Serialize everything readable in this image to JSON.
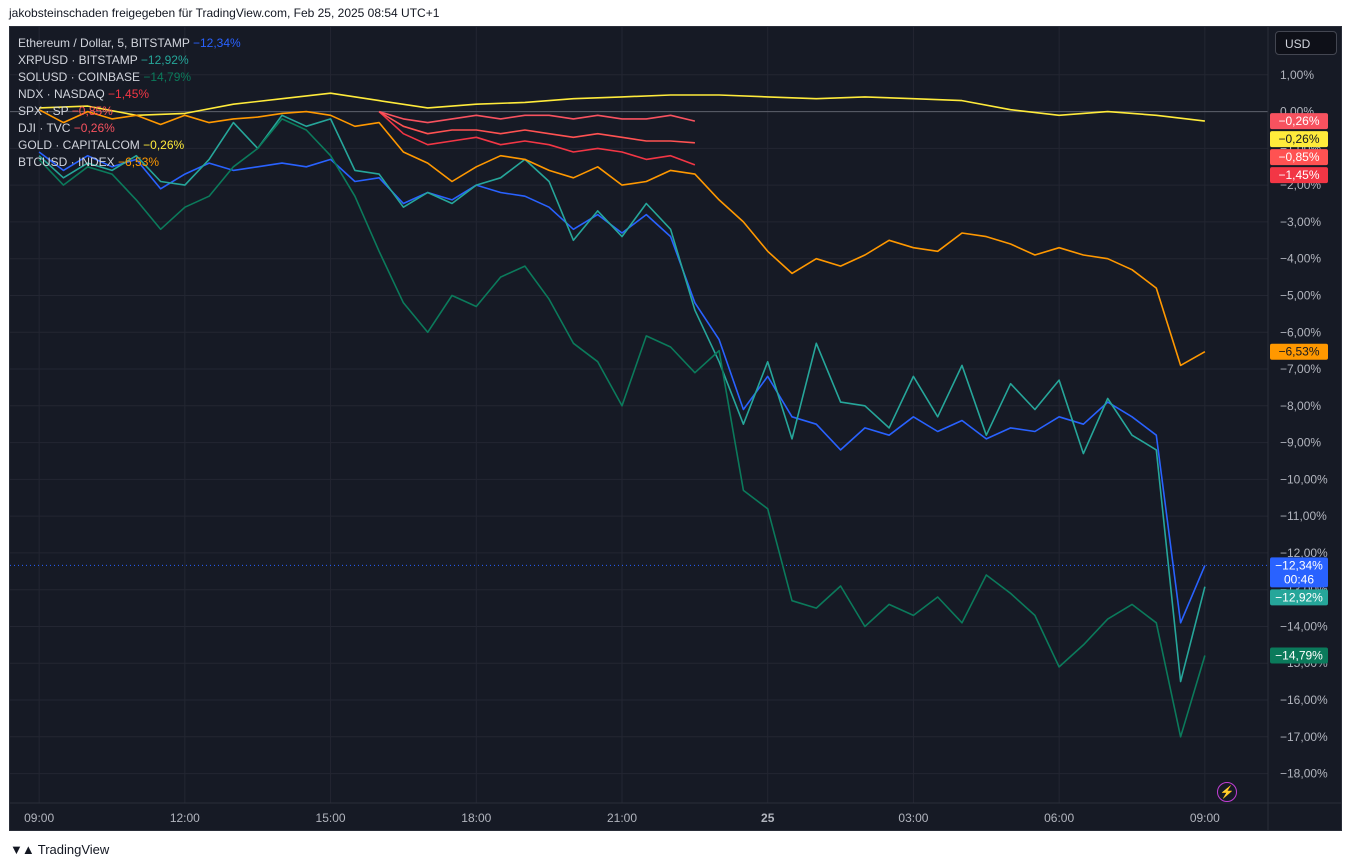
{
  "header": {
    "caption": "jakobsteinschaden freigegeben für TradingView.com, Feb 25, 2025 08:54 UTC+1"
  },
  "toolbar": {
    "currency_label": "USD"
  },
  "footer": {
    "brand": "TradingView",
    "logo_icon": "tradingview-logo-icon"
  },
  "chart_data": {
    "type": "line",
    "title": "",
    "xlabel": "",
    "ylabel": "",
    "x_ticks": [
      "09:00",
      "12:00",
      "15:00",
      "18:00",
      "21:00",
      "25",
      "03:00",
      "06:00",
      "09:00"
    ],
    "x_tick_hours": [
      0,
      3,
      6,
      9,
      12,
      15,
      18,
      21,
      24
    ],
    "y_ticks": [
      "1,00%",
      "0,00%",
      "−1,00%",
      "−2,00%",
      "−3,00%",
      "−4,00%",
      "−5,00%",
      "−6,00%",
      "−7,00%",
      "−8,00%",
      "−9,00%",
      "−10,00%",
      "−11,00%",
      "−12,00%",
      "−13,00%",
      "−14,00%",
      "−15,00%",
      "−16,00%",
      "−17,00%",
      "−18,00%"
    ],
    "y_tick_values": [
      1,
      0,
      -1,
      -2,
      -3,
      -4,
      -5,
      -6,
      -7,
      -8,
      -9,
      -10,
      -11,
      -12,
      -13,
      -14,
      -15,
      -16,
      -17,
      -18
    ],
    "ylim": [
      -18.8,
      2.3
    ],
    "xlim_hours": [
      -0.6,
      25.3
    ],
    "grid": true,
    "legend_position": "top-left",
    "current_time_label": "00:46",
    "series": [
      {
        "name": "Ethereum / Dollar, 5, BITSTAMP",
        "last": "−12,34%",
        "color": "#2962ff",
        "x": [
          0,
          0.5,
          1,
          1.5,
          2,
          2.5,
          3,
          3.5,
          4,
          4.5,
          5,
          5.5,
          6,
          6.5,
          7,
          7.5,
          8,
          8.5,
          9,
          9.5,
          10,
          10.5,
          11,
          11.5,
          12,
          12.5,
          13,
          13.5,
          14,
          14.5,
          15,
          15.5,
          16,
          16.5,
          17,
          17.5,
          18,
          18.5,
          19,
          19.5,
          20,
          20.5,
          21,
          21.5,
          22,
          22.5,
          23,
          23.5,
          24
        ],
        "y": [
          -1.1,
          -1.6,
          -1.2,
          -1.5,
          -1.3,
          -2.1,
          -1.7,
          -1.4,
          -1.6,
          -1.5,
          -1.4,
          -1.5,
          -1.3,
          -1.9,
          -1.8,
          -2.5,
          -2.2,
          -2.4,
          -2.0,
          -2.2,
          -2.3,
          -2.6,
          -3.2,
          -2.8,
          -3.3,
          -2.8,
          -3.4,
          -5.2,
          -6.2,
          -8.1,
          -7.2,
          -8.3,
          -8.5,
          -9.2,
          -8.6,
          -8.8,
          -8.3,
          -8.7,
          -8.4,
          -8.9,
          -8.6,
          -8.7,
          -8.3,
          -8.5,
          -7.9,
          -8.3,
          -8.8,
          -13.9,
          -12.34
        ]
      },
      {
        "name": "XRPUSD · BITSTAMP",
        "last": "−12,92%",
        "color": "#26a69a",
        "x": [
          0,
          0.5,
          1,
          1.5,
          2,
          2.5,
          3,
          3.5,
          4,
          4.5,
          5,
          5.5,
          6,
          6.5,
          7,
          7.5,
          8,
          8.5,
          9,
          9.5,
          10,
          10.5,
          11,
          11.5,
          12,
          12.5,
          13,
          13.5,
          14,
          14.5,
          15,
          15.5,
          16,
          16.5,
          17,
          17.5,
          18,
          18.5,
          19,
          19.5,
          20,
          20.5,
          21,
          21.5,
          22,
          22.5,
          23,
          23.5,
          24
        ],
        "y": [
          -1.2,
          -1.8,
          -1.4,
          -1.6,
          -1.2,
          -1.9,
          -2.0,
          -1.3,
          -0.3,
          -1.0,
          -0.1,
          -0.4,
          -0.2,
          -1.6,
          -1.7,
          -2.6,
          -2.2,
          -2.5,
          -2.0,
          -1.8,
          -1.3,
          -1.9,
          -3.5,
          -2.7,
          -3.4,
          -2.5,
          -3.2,
          -5.4,
          -6.8,
          -8.5,
          -6.8,
          -8.9,
          -6.3,
          -7.9,
          -8.0,
          -8.6,
          -7.2,
          -8.3,
          -6.9,
          -8.8,
          -7.4,
          -8.1,
          -7.3,
          -9.3,
          -7.8,
          -8.8,
          -9.2,
          -15.5,
          -12.92
        ]
      },
      {
        "name": "SOLUSD · COINBASE",
        "last": "−14,79%",
        "color": "#0b7a5b",
        "x": [
          0,
          0.5,
          1,
          1.5,
          2,
          2.5,
          3,
          3.5,
          4,
          4.5,
          5,
          5.5,
          6,
          6.5,
          7,
          7.5,
          8,
          8.5,
          9,
          9.5,
          10,
          10.5,
          11,
          11.5,
          12,
          12.5,
          13,
          13.5,
          14,
          14.5,
          15,
          15.5,
          16,
          16.5,
          17,
          17.5,
          18,
          18.5,
          19,
          19.5,
          20,
          20.5,
          21,
          21.5,
          22,
          22.5,
          23,
          23.5,
          24
        ],
        "y": [
          -1.3,
          -2.0,
          -1.5,
          -1.7,
          -2.4,
          -3.2,
          -2.6,
          -2.3,
          -1.5,
          -1.0,
          -0.2,
          -0.5,
          -1.2,
          -2.3,
          -3.8,
          -5.2,
          -6.0,
          -5.0,
          -5.3,
          -4.5,
          -4.2,
          -5.1,
          -6.3,
          -6.8,
          -8.0,
          -6.1,
          -6.4,
          -7.1,
          -6.5,
          -10.3,
          -10.8,
          -13.3,
          -13.5,
          -12.9,
          -14.0,
          -13.4,
          -13.7,
          -13.2,
          -13.9,
          -12.6,
          -13.1,
          -13.7,
          -15.1,
          -14.5,
          -13.8,
          -13.4,
          -13.9,
          -17.0,
          -14.79
        ]
      },
      {
        "name": "NDX · NASDAQ",
        "last": "−1,45%",
        "color": "#f23645",
        "x": [
          7,
          7.5,
          8,
          8.5,
          9,
          9.5,
          10,
          10.5,
          11,
          11.5,
          12,
          12.5,
          13,
          13.5
        ],
        "y": [
          0,
          -0.6,
          -0.9,
          -0.8,
          -0.7,
          -0.9,
          -0.8,
          -0.9,
          -1.1,
          -1.0,
          -1.1,
          -1.3,
          -1.2,
          -1.45
        ]
      },
      {
        "name": "SPX · SP",
        "last": "−0,85%",
        "color": "#ff5252",
        "x": [
          7,
          7.5,
          8,
          8.5,
          9,
          9.5,
          10,
          10.5,
          11,
          11.5,
          12,
          12.5,
          13,
          13.5
        ],
        "y": [
          0,
          -0.4,
          -0.6,
          -0.5,
          -0.5,
          -0.6,
          -0.5,
          -0.6,
          -0.7,
          -0.6,
          -0.7,
          -0.8,
          -0.8,
          -0.85
        ]
      },
      {
        "name": "DJI · TVC",
        "last": "−0,26%",
        "color": "#f7525f",
        "x": [
          7,
          7.5,
          8,
          8.5,
          9,
          9.5,
          10,
          10.5,
          11,
          11.5,
          12,
          12.5,
          13,
          13.5
        ],
        "y": [
          0,
          -0.2,
          -0.3,
          -0.2,
          -0.1,
          -0.2,
          -0.1,
          -0.1,
          -0.2,
          -0.1,
          -0.2,
          -0.2,
          -0.1,
          -0.26
        ]
      },
      {
        "name": "GOLD · CAPITALCOM",
        "last": "−0,26%",
        "color": "#ffeb3b",
        "x": [
          0,
          1,
          2,
          3,
          4,
          5,
          6,
          7,
          8,
          9,
          10,
          11,
          12,
          13,
          14,
          15,
          16,
          17,
          18,
          19,
          20,
          21,
          22,
          23,
          24
        ],
        "y": [
          0.1,
          0.15,
          -0.1,
          -0.05,
          0.2,
          0.35,
          0.5,
          0.3,
          0.1,
          0.2,
          0.25,
          0.35,
          0.4,
          0.45,
          0.45,
          0.4,
          0.35,
          0.4,
          0.35,
          0.3,
          0.05,
          -0.1,
          0.0,
          -0.1,
          -0.26
        ]
      },
      {
        "name": "BTCUSD · INDEX",
        "last": "−6,53%",
        "color": "#ff9800",
        "x": [
          0,
          0.5,
          1,
          1.5,
          2,
          2.5,
          3,
          3.5,
          4,
          4.5,
          5,
          5.5,
          6,
          6.5,
          7,
          7.5,
          8,
          8.5,
          9,
          9.5,
          10,
          10.5,
          11,
          11.5,
          12,
          12.5,
          13,
          13.5,
          14,
          14.5,
          15,
          15.5,
          16,
          16.5,
          17,
          17.5,
          18,
          18.5,
          19,
          19.5,
          20,
          20.5,
          21,
          21.5,
          22,
          22.5,
          23,
          23.5,
          24
        ],
        "y": [
          0.05,
          -0.3,
          0.0,
          -0.2,
          -0.1,
          -0.35,
          -0.1,
          -0.3,
          -0.2,
          -0.15,
          -0.05,
          0.0,
          -0.1,
          -0.4,
          -0.3,
          -1.1,
          -1.4,
          -1.9,
          -1.5,
          -1.2,
          -1.3,
          -1.6,
          -1.8,
          -1.5,
          -2.0,
          -1.9,
          -1.6,
          -1.7,
          -2.4,
          -3.0,
          -3.8,
          -4.4,
          -4.0,
          -4.2,
          -3.9,
          -3.5,
          -3.7,
          -3.8,
          -3.3,
          -3.4,
          -3.6,
          -3.9,
          -3.7,
          -3.9,
          -4.0,
          -4.3,
          -4.8,
          -6.9,
          -6.53
        ]
      }
    ]
  }
}
